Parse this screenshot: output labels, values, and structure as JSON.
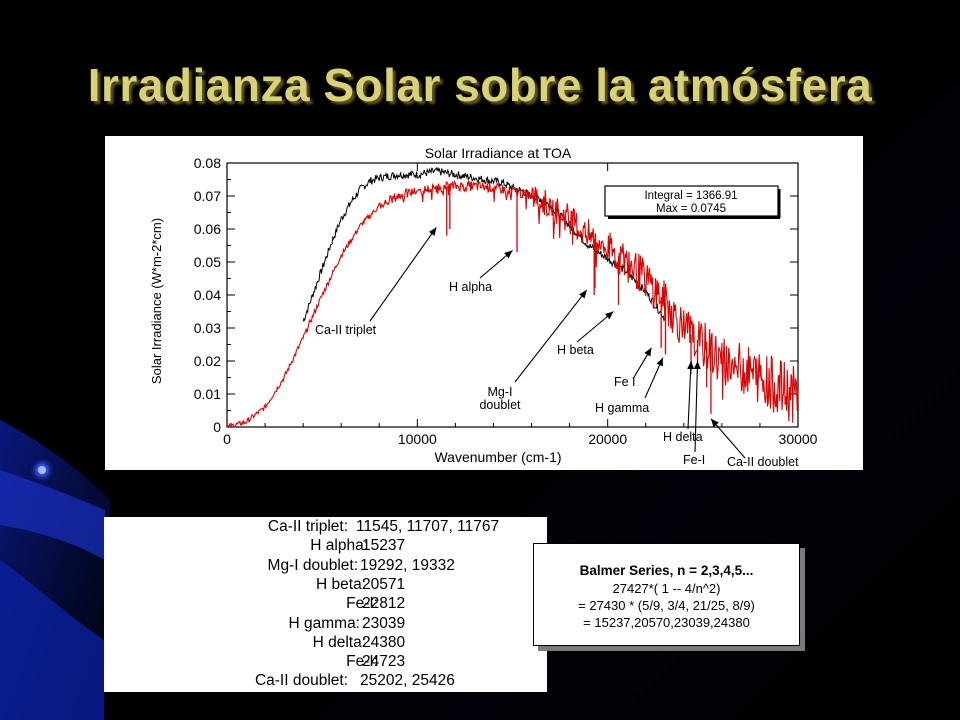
{
  "slide": {
    "title": "Irradianza Solar sobre la atmósfera",
    "background": "#000000",
    "title_color": "#d8d17a"
  },
  "chart_data": {
    "type": "line",
    "title": "Solar Irradiance at TOA",
    "xlabel": "Wavenumber (cm-1)",
    "ylabel": "Solar Irradiance (W*m-2*cm)",
    "xlim": [
      0,
      30000
    ],
    "ylim": [
      0,
      0.08
    ],
    "xticks": [
      "0",
      "10000",
      "20000",
      "30000"
    ],
    "yticks": [
      "0",
      "0.01",
      "0.02",
      "0.03",
      "0.04",
      "0.05",
      "0.06",
      "0.07",
      "0.08"
    ],
    "grid": false,
    "series": [
      {
        "color": "#000000",
        "x": [
          4000,
          4500,
          5000,
          5500,
          6000,
          6500,
          7000,
          7500,
          8000,
          8500,
          9000,
          9500,
          10000,
          10500,
          11000,
          11500,
          12000,
          12500,
          13000,
          13500,
          14000,
          14500,
          15000,
          15500,
          16000,
          16500,
          17000,
          17500,
          18000,
          18500,
          19000,
          19500,
          20000,
          20500,
          21000,
          21500,
          22000,
          22500,
          23000
        ],
        "y": [
          0.032,
          0.04,
          0.048,
          0.056,
          0.063,
          0.068,
          0.072,
          0.0745,
          0.0755,
          0.076,
          0.0765,
          0.0765,
          0.0765,
          0.077,
          0.0775,
          0.077,
          0.0765,
          0.076,
          0.0755,
          0.075,
          0.0745,
          0.074,
          0.0725,
          0.0715,
          0.07,
          0.069,
          0.067,
          0.064,
          0.061,
          0.058,
          0.055,
          0.053,
          0.051,
          0.049,
          0.047,
          0.044,
          0.041,
          0.037,
          0.033
        ]
      },
      {
        "color": "#e00000",
        "x": [
          0,
          1000,
          2000,
          3000,
          4000,
          5000,
          6000,
          7000,
          8000,
          9000,
          10000,
          11000,
          12000,
          13000,
          14000,
          15000,
          16000,
          17000,
          18000,
          19000,
          20000,
          21000,
          22000,
          23000,
          24000,
          25000,
          26000,
          27000,
          28000,
          29000,
          30000
        ],
        "y": [
          0,
          0.0015,
          0.006,
          0.015,
          0.027,
          0.04,
          0.052,
          0.061,
          0.067,
          0.07,
          0.0715,
          0.0725,
          0.073,
          0.073,
          0.0725,
          0.0715,
          0.07,
          0.067,
          0.063,
          0.058,
          0.054,
          0.05,
          0.045,
          0.038,
          0.03,
          0.025,
          0.02,
          0.018,
          0.015,
          0.012,
          0.009
        ]
      }
    ],
    "annotations": [
      {
        "text": "Integral =  1366.91",
        "box": true
      },
      {
        "text": "Max = 0.0745",
        "box": true
      },
      {
        "text": "Ca-II triplet",
        "x": 11600,
        "y": 0.061
      },
      {
        "text": "H alpha",
        "x": 15237,
        "y": 0.054
      },
      {
        "text": "Mg-I doublet",
        "x": 19300,
        "y": 0.041
      },
      {
        "text": "H beta",
        "x": 20571,
        "y": 0.035
      },
      {
        "text": "Fe I",
        "x": 22812,
        "y": 0.024
      },
      {
        "text": "H gamma",
        "x": 23039,
        "y": 0.02
      },
      {
        "text": "H delta",
        "x": 24380,
        "y": 0.02
      },
      {
        "text": "Fe-I",
        "x": 24723,
        "y": 0.02
      },
      {
        "text": "Ca-II doublet",
        "x": 25426,
        "y": 0.005
      }
    ]
  },
  "lines_table": [
    {
      "name": "Ca-II triplet:",
      "value": "11545, 11707, 11767"
    },
    {
      "name": "H alpha:",
      "value": "15237"
    },
    {
      "name": "Mg-I doublet:",
      "value": "19292, 19332"
    },
    {
      "name": "H beta:",
      "value": "20571"
    },
    {
      "name": "Fe-I:",
      "value": "22812"
    },
    {
      "name": "H gamma:",
      "value": "23039"
    },
    {
      "name": "H delta:",
      "value": "24380"
    },
    {
      "name": "Fe-I:",
      "value": "24723"
    },
    {
      "name": "Ca-II doublet:",
      "value": "25202, 25426"
    }
  ],
  "balmer": {
    "heading": "Balmer Series, n = 2,3,4,5...",
    "line1": "27427*( 1 -- 4/n^2)",
    "line2": "= 27430 * (5/9, 3/4, 21/25, 8/9)",
    "line3": "=    15237,20570,23039,24380"
  }
}
